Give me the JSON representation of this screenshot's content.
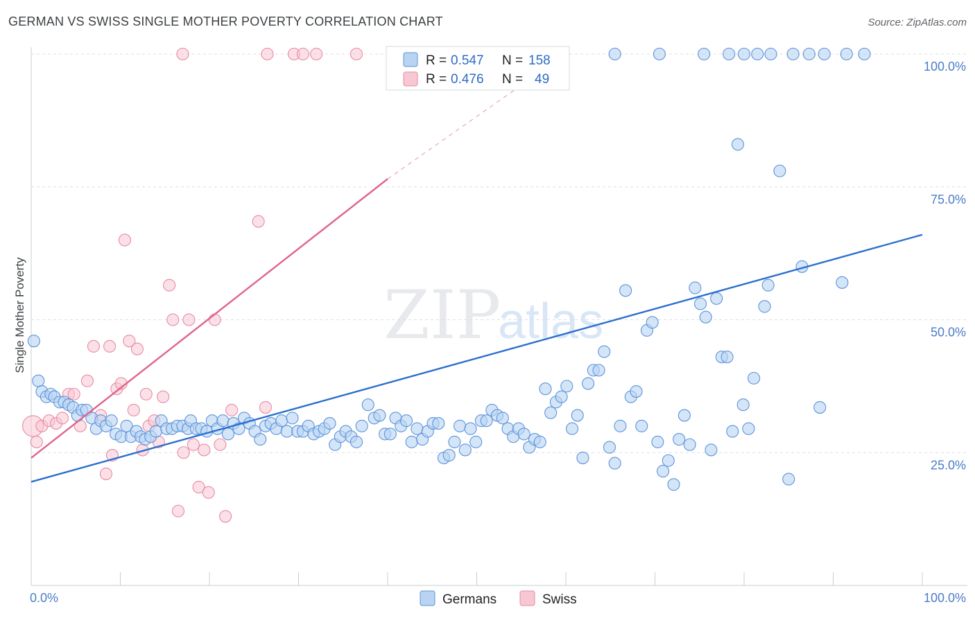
{
  "title": "GERMAN VS SWISS SINGLE MOTHER POVERTY CORRELATION CHART",
  "source": "Source: ZipAtlas.com",
  "watermark": {
    "zip": "ZIP",
    "atlas": "atlas"
  },
  "colors": {
    "german_fill": "#b9d3f3",
    "german_stroke": "#5b93d9",
    "german_line": "#2b6fcf",
    "swiss_fill": "#f7c7d3",
    "swiss_stroke": "#e88aa3",
    "swiss_line": "#e0638c",
    "axis_label": "#4a7cc7",
    "grid": "#dcdfe3"
  },
  "stats": {
    "german": {
      "r_label": "R =",
      "r_value": "0.547",
      "n_label": "N =",
      "n_value": "158"
    },
    "swiss": {
      "r_label": "R =",
      "r_value": "0.476",
      "n_label": "N =",
      "n_value": "49"
    }
  },
  "chart_data": {
    "type": "scatter",
    "title": "GERMAN VS SWISS SINGLE MOTHER POVERTY CORRELATION CHART",
    "xlabel": "",
    "ylabel": "Single Mother Poverty",
    "xlim": [
      0,
      100
    ],
    "ylim": [
      0,
      100
    ],
    "x_tick_labels": [
      "0.0%",
      "100.0%"
    ],
    "y_ticks": [
      {
        "value": 25,
        "label": "25.0%"
      },
      {
        "value": 50,
        "label": "50.0%"
      },
      {
        "value": 75,
        "label": "75.0%"
      },
      {
        "value": 100,
        "label": "100.0%"
      }
    ],
    "grid": true,
    "legend_position": "bottom-center",
    "series": [
      {
        "name": "Germans",
        "trend": {
          "x0": 0,
          "y0": 19.5,
          "x1": 100,
          "y1": 66
        },
        "points": [
          [
            0.3,
            46
          ],
          [
            0.8,
            38.5
          ],
          [
            1.2,
            36.5
          ],
          [
            1.7,
            35.5
          ],
          [
            2.2,
            36
          ],
          [
            2.6,
            35.5
          ],
          [
            3.2,
            34.5
          ],
          [
            3.7,
            34.5
          ],
          [
            4.2,
            34
          ],
          [
            4.7,
            33.5
          ],
          [
            5.2,
            32
          ],
          [
            5.7,
            33
          ],
          [
            6.2,
            33
          ],
          [
            6.8,
            31.5
          ],
          [
            7.3,
            29.5
          ],
          [
            7.8,
            31
          ],
          [
            8.4,
            30
          ],
          [
            9.0,
            31
          ],
          [
            9.5,
            28.5
          ],
          [
            10.1,
            28
          ],
          [
            10.7,
            30
          ],
          [
            11.2,
            28
          ],
          [
            11.8,
            29
          ],
          [
            12.3,
            28
          ],
          [
            12.8,
            27.5
          ],
          [
            13.4,
            28
          ],
          [
            14.0,
            29
          ],
          [
            14.6,
            31
          ],
          [
            15.2,
            29.5
          ],
          [
            15.8,
            29.5
          ],
          [
            16.4,
            30
          ],
          [
            17.0,
            30
          ],
          [
            17.6,
            29.5
          ],
          [
            17.9,
            31
          ],
          [
            18.5,
            29.5
          ],
          [
            19.1,
            29.5
          ],
          [
            19.7,
            29
          ],
          [
            20.3,
            31
          ],
          [
            20.9,
            29.5
          ],
          [
            21.5,
            31
          ],
          [
            22.1,
            28.5
          ],
          [
            22.7,
            30.5
          ],
          [
            23.3,
            29.5
          ],
          [
            23.9,
            31.5
          ],
          [
            24.5,
            30.5
          ],
          [
            25.1,
            29
          ],
          [
            25.7,
            27.5
          ],
          [
            26.3,
            30
          ],
          [
            26.9,
            30.5
          ],
          [
            27.5,
            29.5
          ],
          [
            28.1,
            31
          ],
          [
            28.7,
            29
          ],
          [
            29.3,
            31.5
          ],
          [
            29.9,
            29
          ],
          [
            30.5,
            29
          ],
          [
            31.1,
            30
          ],
          [
            31.7,
            28.5
          ],
          [
            32.3,
            29
          ],
          [
            32.9,
            29.5
          ],
          [
            33.5,
            30.5
          ],
          [
            34.1,
            26.5
          ],
          [
            34.7,
            28
          ],
          [
            35.3,
            29
          ],
          [
            35.9,
            28
          ],
          [
            36.5,
            27
          ],
          [
            37.1,
            30
          ],
          [
            37.8,
            34
          ],
          [
            38.5,
            31.5
          ],
          [
            39.1,
            32
          ],
          [
            39.7,
            28.5
          ],
          [
            40.3,
            28.5
          ],
          [
            40.9,
            31.5
          ],
          [
            41.5,
            30
          ],
          [
            42.1,
            31
          ],
          [
            42.7,
            27
          ],
          [
            43.3,
            29.5
          ],
          [
            43.9,
            27.5
          ],
          [
            44.5,
            29
          ],
          [
            45.1,
            30.5
          ],
          [
            45.7,
            30.5
          ],
          [
            46.3,
            24
          ],
          [
            46.9,
            24.5
          ],
          [
            47.5,
            27
          ],
          [
            48.1,
            30
          ],
          [
            48.7,
            25.5
          ],
          [
            49.3,
            29.5
          ],
          [
            49.9,
            27
          ],
          [
            50.5,
            31
          ],
          [
            51.1,
            31
          ],
          [
            51.7,
            33
          ],
          [
            52.3,
            32
          ],
          [
            52.9,
            31.5
          ],
          [
            53.5,
            29.5
          ],
          [
            54.1,
            28
          ],
          [
            54.7,
            29.5
          ],
          [
            55.3,
            28.5
          ],
          [
            55.9,
            26
          ],
          [
            56.5,
            27.5
          ],
          [
            57.1,
            27
          ],
          [
            57.7,
            37
          ],
          [
            58.3,
            32.5
          ],
          [
            58.9,
            34.5
          ],
          [
            59.5,
            35.5
          ],
          [
            60.1,
            37.5
          ],
          [
            60.7,
            29.5
          ],
          [
            61.3,
            32
          ],
          [
            61.9,
            24
          ],
          [
            62.5,
            38
          ],
          [
            63.1,
            40.5
          ],
          [
            63.7,
            40.5
          ],
          [
            64.3,
            44
          ],
          [
            64.9,
            26
          ],
          [
            65.5,
            23
          ],
          [
            66.1,
            30
          ],
          [
            66.7,
            55.5
          ],
          [
            67.3,
            35.5
          ],
          [
            67.9,
            36.5
          ],
          [
            68.5,
            30
          ],
          [
            69.1,
            48
          ],
          [
            69.7,
            49.5
          ],
          [
            70.3,
            27
          ],
          [
            70.9,
            21.5
          ],
          [
            71.5,
            23.5
          ],
          [
            72.1,
            19
          ],
          [
            72.7,
            27.5
          ],
          [
            73.3,
            32
          ],
          [
            73.9,
            26.5
          ],
          [
            74.5,
            56
          ],
          [
            75.1,
            53
          ],
          [
            75.7,
            50.5
          ],
          [
            76.3,
            25.5
          ],
          [
            76.9,
            54
          ],
          [
            77.5,
            43
          ],
          [
            78.1,
            43
          ],
          [
            78.7,
            29
          ],
          [
            79.3,
            83
          ],
          [
            79.9,
            34
          ],
          [
            80.5,
            29.5
          ],
          [
            81.1,
            39
          ],
          [
            82.3,
            52.5
          ],
          [
            82.7,
            56.5
          ],
          [
            84.0,
            78
          ],
          [
            85.0,
            20
          ],
          [
            86.5,
            60
          ],
          [
            88.5,
            33.5
          ],
          [
            91.0,
            57
          ],
          [
            65.5,
            100
          ],
          [
            70.5,
            100
          ],
          [
            75.5,
            100
          ],
          [
            78.3,
            100
          ],
          [
            80.0,
            100
          ],
          [
            81.5,
            100
          ],
          [
            83.0,
            100
          ],
          [
            85.5,
            100
          ],
          [
            87.3,
            100
          ],
          [
            89.0,
            100
          ],
          [
            91.5,
            100
          ],
          [
            93.5,
            100
          ]
        ]
      },
      {
        "name": "Swiss",
        "trend": {
          "x0": 0,
          "y0": 24,
          "x1": 40,
          "y1": 76.5,
          "dash_to": {
            "x": 60,
            "y": 100
          }
        },
        "points": [
          [
            0.2,
            30
          ],
          [
            0.6,
            27
          ],
          [
            1.2,
            30
          ],
          [
            2.0,
            31
          ],
          [
            2.8,
            30.5
          ],
          [
            3.5,
            31.5
          ],
          [
            4.2,
            36
          ],
          [
            4.8,
            36
          ],
          [
            5.5,
            30
          ],
          [
            6.3,
            38.5
          ],
          [
            7.0,
            45
          ],
          [
            7.8,
            32
          ],
          [
            8.4,
            21
          ],
          [
            8.8,
            45
          ],
          [
            9.1,
            24.5
          ],
          [
            9.6,
            37
          ],
          [
            10.1,
            38
          ],
          [
            10.5,
            65
          ],
          [
            11.0,
            46
          ],
          [
            11.5,
            33
          ],
          [
            11.9,
            44.5
          ],
          [
            12.5,
            25.5
          ],
          [
            12.9,
            36
          ],
          [
            13.2,
            30
          ],
          [
            13.8,
            31
          ],
          [
            14.3,
            27
          ],
          [
            14.8,
            35.5
          ],
          [
            15.5,
            56.5
          ],
          [
            15.9,
            50
          ],
          [
            16.5,
            14
          ],
          [
            17.1,
            25
          ],
          [
            17.7,
            50
          ],
          [
            18.2,
            26.5
          ],
          [
            18.8,
            18.5
          ],
          [
            19.4,
            25.5
          ],
          [
            19.9,
            17.5
          ],
          [
            20.6,
            50
          ],
          [
            21.2,
            26.5
          ],
          [
            21.8,
            13
          ],
          [
            22.5,
            33
          ],
          [
            25.5,
            68.5
          ],
          [
            26.3,
            33.5
          ],
          [
            17.0,
            100
          ],
          [
            26.5,
            100
          ],
          [
            29.5,
            100
          ],
          [
            30.5,
            100
          ],
          [
            32.0,
            100
          ],
          [
            36.5,
            100
          ],
          [
            40.5,
            100
          ]
        ]
      }
    ]
  },
  "legend": {
    "items": [
      {
        "label": "Germans"
      },
      {
        "label": "Swiss"
      }
    ]
  }
}
